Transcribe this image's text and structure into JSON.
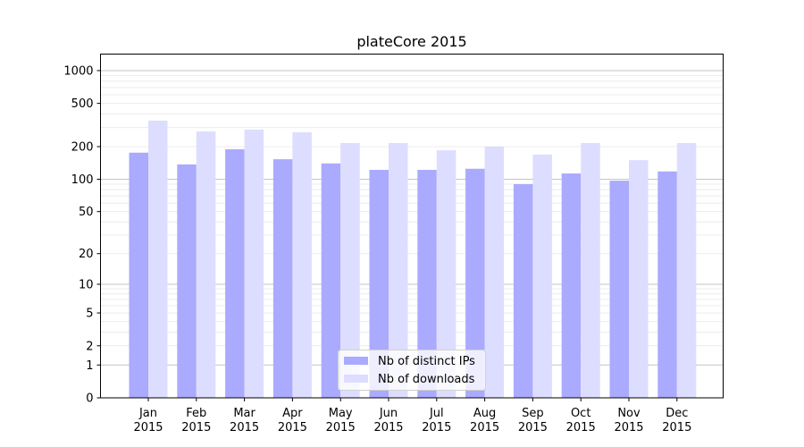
{
  "chart_data": {
    "type": "bar",
    "title": "plateCore 2015",
    "xlabel": "",
    "ylabel": "",
    "yscale": "symlog",
    "ylim": [
      0,
      1300
    ],
    "yticks": [
      0,
      1,
      2,
      5,
      10,
      20,
      50,
      100,
      200,
      500,
      1000
    ],
    "ytick_labels": [
      "0",
      "1",
      "2",
      "5",
      "10",
      "20",
      "50",
      "100",
      "200",
      "500",
      "1000"
    ],
    "grid": true,
    "legend_position": "bottom-center",
    "categories": [
      "Jan\n2015",
      "Feb\n2015",
      "Mar\n2015",
      "Apr\n2015",
      "May\n2015",
      "Jun\n2015",
      "Jul\n2015",
      "Aug\n2015",
      "Sep\n2015",
      "Oct\n2015",
      "Nov\n2015",
      "Dec\n2015"
    ],
    "series": [
      {
        "name": "Nb of distinct IPs",
        "color": "#aaaaff",
        "values": [
          176,
          137,
          189,
          153,
          140,
          122,
          122,
          125,
          90,
          113,
          97,
          118
        ]
      },
      {
        "name": "Nb of downloads",
        "color": "#ddddff",
        "values": [
          347,
          276,
          287,
          271,
          216,
          216,
          185,
          200,
          169,
          216,
          150,
          216
        ]
      }
    ]
  }
}
